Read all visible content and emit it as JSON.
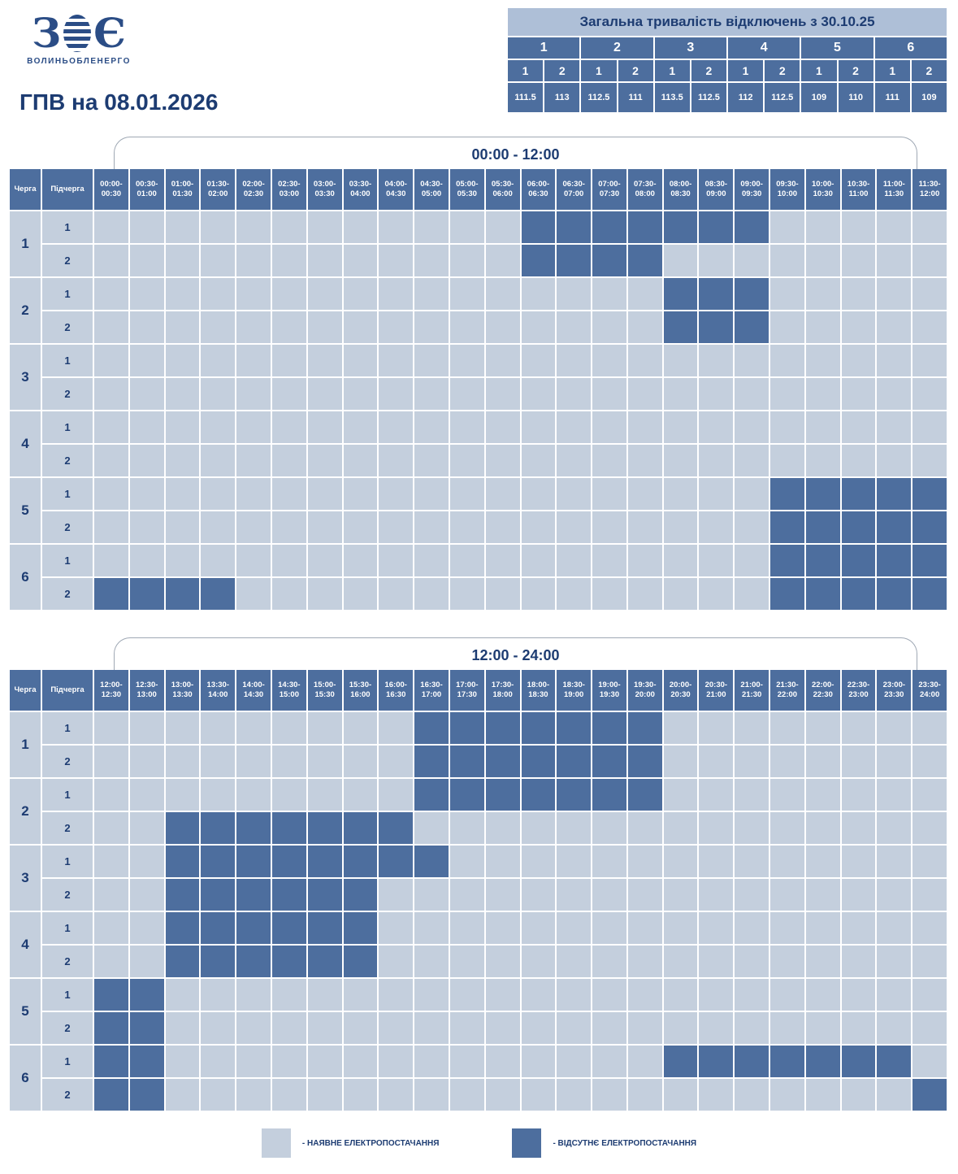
{
  "page_title": "ГПВ на 08.01.2026",
  "logo": {
    "brand_left": "З",
    "brand_right": "Є",
    "company": "ВОЛИНЬОБЛЕНЕРГО"
  },
  "labels": {
    "queue_header": "Черга",
    "subqueue_header": "Підчерга"
  },
  "legend": {
    "available": "- НАЯВНЕ ЕЛЕКТРОПОСТАЧАННЯ",
    "absent": "- ВІДСУТНЄ ЕЛЕКТРОПОСТАЧАННЯ"
  },
  "colors": {
    "outage": "#4d6e9e",
    "available": "#c4cfdd",
    "heading_text": "#1d3c72",
    "summary_title_bg": "#aebfd7",
    "logo": "#2b4d86"
  },
  "chart_data": [
    {
      "type": "table",
      "title": "Загальна тривалість відключень з 30.10.25",
      "queues": [
        "1",
        "2",
        "3",
        "4",
        "5",
        "6"
      ],
      "subqueues": [
        "1",
        "2",
        "1",
        "2",
        "1",
        "2",
        "1",
        "2",
        "1",
        "2",
        "1",
        "2"
      ],
      "values": [
        111.5,
        113,
        112.5,
        111,
        113.5,
        112.5,
        112,
        112.5,
        109,
        110,
        111,
        109
      ],
      "units": "hours"
    },
    {
      "type": "heatmap",
      "title": "00:00 - 12:00",
      "cells_encoding": "1=outage, 0=power available",
      "time_slots": [
        "00:00-00:30",
        "00:30-01:00",
        "01:00-01:30",
        "01:30-02:00",
        "02:00-02:30",
        "02:30-03:00",
        "03:00-03:30",
        "03:30-04:00",
        "04:00-04:30",
        "04:30-05:00",
        "05:00-05:30",
        "05:30-06:00",
        "06:00-06:30",
        "06:30-07:00",
        "07:00-07:30",
        "07:30-08:00",
        "08:00-08:30",
        "08:30-09:00",
        "09:00-09:30",
        "09:30-10:00",
        "10:00-10:30",
        "10:30-11:00",
        "11:00-11:30",
        "11:30-12:00"
      ],
      "rows": [
        {
          "queue": "1",
          "subqueue": "1",
          "cells": "000000000000111111100000"
        },
        {
          "queue": "1",
          "subqueue": "2",
          "cells": "000000000000111100000000"
        },
        {
          "queue": "2",
          "subqueue": "1",
          "cells": "000000000000000011100000"
        },
        {
          "queue": "2",
          "subqueue": "2",
          "cells": "000000000000000011100000"
        },
        {
          "queue": "3",
          "subqueue": "1",
          "cells": "000000000000000000000000"
        },
        {
          "queue": "3",
          "subqueue": "2",
          "cells": "000000000000000000000000"
        },
        {
          "queue": "4",
          "subqueue": "1",
          "cells": "000000000000000000000000"
        },
        {
          "queue": "4",
          "subqueue": "2",
          "cells": "000000000000000000000000"
        },
        {
          "queue": "5",
          "subqueue": "1",
          "cells": "000000000000000000011111"
        },
        {
          "queue": "5",
          "subqueue": "2",
          "cells": "000000000000000000011111"
        },
        {
          "queue": "6",
          "subqueue": "1",
          "cells": "000000000000000000011111"
        },
        {
          "queue": "6",
          "subqueue": "2",
          "cells": "111100000000000000011111"
        }
      ]
    },
    {
      "type": "heatmap",
      "title": "12:00 - 24:00",
      "cells_encoding": "1=outage, 0=power available",
      "time_slots": [
        "12:00-12:30",
        "12:30-13:00",
        "13:00-13:30",
        "13:30-14:00",
        "14:00-14:30",
        "14:30-15:00",
        "15:00-15:30",
        "15:30-16:00",
        "16:00-16:30",
        "16:30-17:00",
        "17:00-17:30",
        "17:30-18:00",
        "18:00-18:30",
        "18:30-19:00",
        "19:00-19:30",
        "19:30-20:00",
        "20:00-20:30",
        "20:30-21:00",
        "21:00-21:30",
        "21:30-22:00",
        "22:00-22:30",
        "22:30-23:00",
        "23:00-23:30",
        "23:30-24:00"
      ],
      "rows": [
        {
          "queue": "1",
          "subqueue": "1",
          "cells": "000000000111111100000000"
        },
        {
          "queue": "1",
          "subqueue": "2",
          "cells": "000000000111111100000000"
        },
        {
          "queue": "2",
          "subqueue": "1",
          "cells": "000000000111111100000000"
        },
        {
          "queue": "2",
          "subqueue": "2",
          "cells": "001111111000000000000000"
        },
        {
          "queue": "3",
          "subqueue": "1",
          "cells": "001111111100000000000000"
        },
        {
          "queue": "3",
          "subqueue": "2",
          "cells": "001111110000000000000000"
        },
        {
          "queue": "4",
          "subqueue": "1",
          "cells": "001111110000000000000000"
        },
        {
          "queue": "4",
          "subqueue": "2",
          "cells": "001111110000000000000000"
        },
        {
          "queue": "5",
          "subqueue": "1",
          "cells": "110000000000000000000000"
        },
        {
          "queue": "5",
          "subqueue": "2",
          "cells": "110000000000000000000000"
        },
        {
          "queue": "6",
          "subqueue": "1",
          "cells": "110000000000000011111110"
        },
        {
          "queue": "6",
          "subqueue": "2",
          "cells": "110000000000000000000001"
        }
      ]
    }
  ]
}
